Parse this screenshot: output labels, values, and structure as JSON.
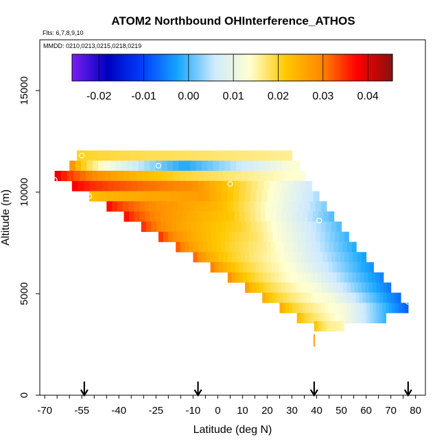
{
  "chart_data": {
    "type": "heatmap",
    "title": "ATOM2 Northbound OHInterference_ATHOS",
    "flights_label": "Flts: 6,7,8,9,10",
    "dates_label": "MMDD: 0210,0213,0215,0218,0219",
    "xlabel": "Latitude (deg N)",
    "ylabel": "Altitude (m)",
    "xlim": [
      -72,
      84
    ],
    "ylim": [
      0,
      17500
    ],
    "xticks": [
      -70,
      -55,
      -40,
      -25,
      -10,
      0,
      10,
      20,
      30,
      40,
      50,
      60,
      70,
      80
    ],
    "yticks": [
      0,
      5000,
      10000,
      15000
    ],
    "colorbar": {
      "range": [
        -0.026,
        0.0455
      ],
      "ticks": [
        -0.02,
        -0.01,
        0.0,
        0.01,
        0.02,
        0.03,
        0.04
      ],
      "tick_labels": [
        "-0.02",
        "-0.01",
        "0.00",
        "0.01",
        "0.02",
        "0.03",
        "0.04"
      ],
      "colors": [
        "#7a1ff0",
        "#0000c0",
        "#0040ff",
        "#1aa8ff",
        "#cfeaff",
        "#ffffd0",
        "#ffc800",
        "#ff8800",
        "#ff0000",
        "#8a1010"
      ]
    },
    "rows": [
      {
        "altitude": 11800,
        "lat_min": -57,
        "lat_max": 30,
        "value_left": 0.021,
        "value_mid": 0.018,
        "value_right": 0.016
      },
      {
        "altitude": 11300,
        "lat_min": -60,
        "lat_max": 33,
        "value_left": 0.035,
        "value_mid": -0.002,
        "value_right": 0.014
      },
      {
        "altitude": 10800,
        "lat_min": -66,
        "lat_max": 35,
        "value_left": 0.043,
        "value_mid": 0.02,
        "value_right": 0.013
      },
      {
        "altitude": 10300,
        "lat_min": -59,
        "lat_max": 38,
        "value_left": 0.04,
        "value_mid": 0.029,
        "value_right": 0.006
      },
      {
        "altitude": 9800,
        "lat_min": -52,
        "lat_max": 41,
        "value_left": 0.022,
        "value_mid": 0.027,
        "value_right": 0.004
      },
      {
        "altitude": 9300,
        "lat_min": -45,
        "lat_max": 44,
        "value_left": 0.04,
        "value_mid": 0.024,
        "value_right": 0.002
      },
      {
        "altitude": 8800,
        "lat_min": -38,
        "lat_max": 47,
        "value_left": 0.04,
        "value_mid": 0.022,
        "value_right": 0.0
      },
      {
        "altitude": 8300,
        "lat_min": -31,
        "lat_max": 50,
        "value_left": 0.038,
        "value_mid": 0.02,
        "value_right": 0.0
      },
      {
        "altitude": 7800,
        "lat_min": -24,
        "lat_max": 53,
        "value_left": 0.038,
        "value_mid": 0.018,
        "value_right": -0.001
      },
      {
        "altitude": 7300,
        "lat_min": -17,
        "lat_max": 56,
        "value_left": 0.036,
        "value_mid": 0.016,
        "value_right": -0.002
      },
      {
        "altitude": 6800,
        "lat_min": -10,
        "lat_max": 60,
        "value_left": 0.035,
        "value_mid": 0.014,
        "value_right": -0.003
      },
      {
        "altitude": 6300,
        "lat_min": -3,
        "lat_max": 63,
        "value_left": 0.034,
        "value_mid": 0.013,
        "value_right": -0.004
      },
      {
        "altitude": 5800,
        "lat_min": 4,
        "lat_max": 67,
        "value_left": 0.032,
        "value_mid": 0.012,
        "value_right": -0.005
      },
      {
        "altitude": 5300,
        "lat_min": 11,
        "lat_max": 70,
        "value_left": 0.03,
        "value_mid": 0.012,
        "value_right": -0.006
      },
      {
        "altitude": 4800,
        "lat_min": 18,
        "lat_max": 74,
        "value_left": 0.028,
        "value_mid": 0.012,
        "value_right": -0.007
      },
      {
        "altitude": 4300,
        "lat_min": 25,
        "lat_max": 77,
        "value_left": 0.028,
        "value_mid": 0.012,
        "value_right": -0.008
      },
      {
        "altitude": 3800,
        "lat_min": 32,
        "lat_max": 68,
        "value_left": 0.026,
        "value_mid": 0.013,
        "value_right": -0.001
      },
      {
        "altitude": 3400,
        "lat_min": 39,
        "lat_max": 51,
        "value_left": 0.025,
        "value_mid": 0.016,
        "value_right": 0.015
      }
    ],
    "markers": [
      {
        "lat": -55,
        "alt": 11800
      },
      {
        "lat": -24,
        "alt": 11300
      },
      {
        "lat": -66,
        "alt": 10600
      },
      {
        "lat": 5,
        "alt": 10400
      },
      {
        "lat": -52,
        "alt": 9800
      },
      {
        "lat": 41,
        "alt": 8600
      },
      {
        "lat": 77,
        "alt": 4600
      }
    ],
    "flight_arrows_lat": [
      -54,
      -8,
      39,
      77
    ]
  }
}
